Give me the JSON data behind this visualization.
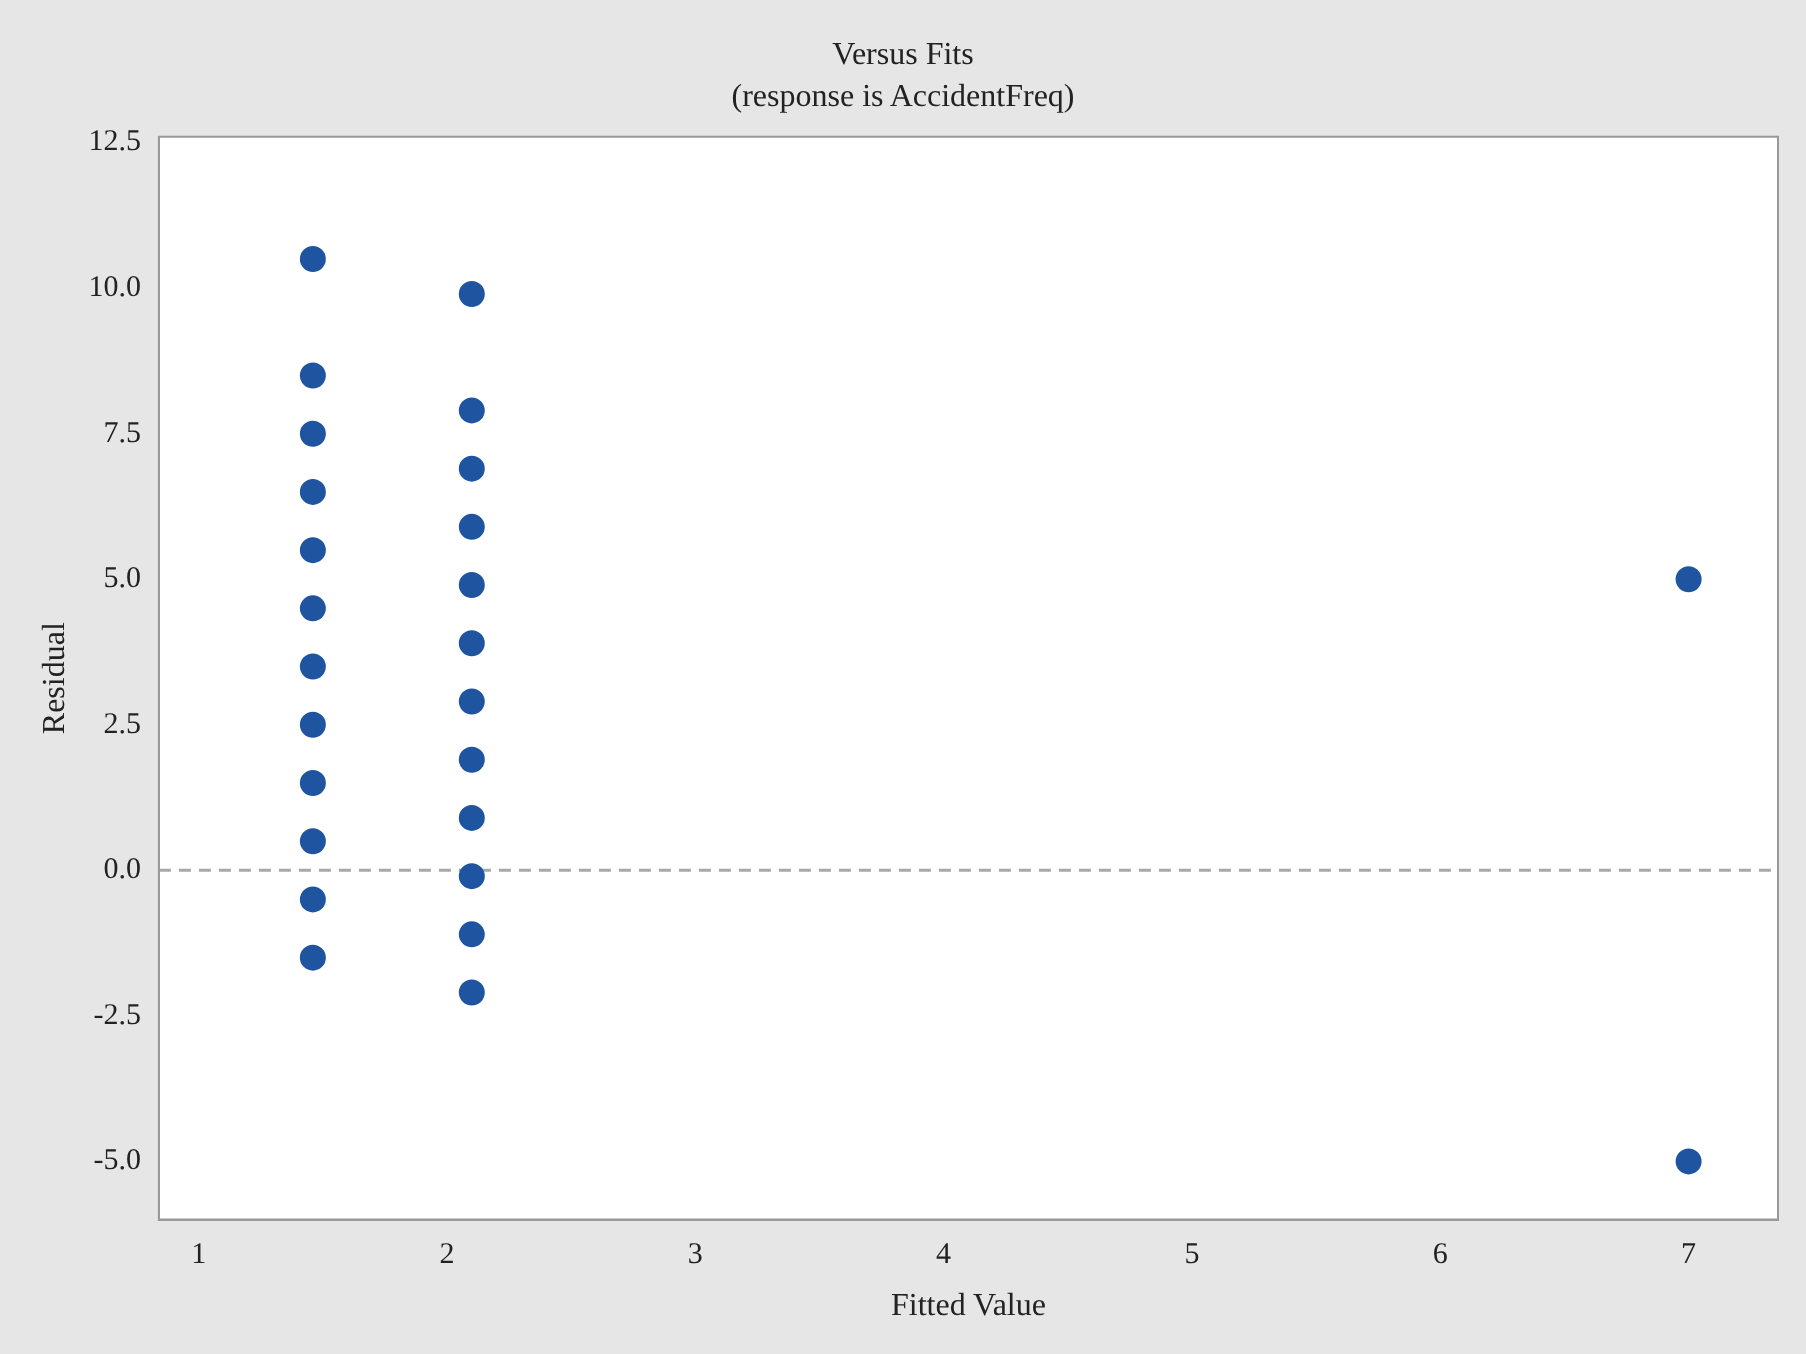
{
  "chart_data": {
    "type": "scatter",
    "title": "Versus Fits",
    "subtitle": "(response is AccidentFreq)",
    "xlabel": "Fitted Value",
    "ylabel": "Residual",
    "series": [
      {
        "color": "#1f55a0",
        "x": [
          1.46,
          1.46,
          1.46,
          1.46,
          1.46,
          1.46,
          1.46,
          1.46,
          1.46,
          1.46,
          1.46,
          1.46,
          2.1,
          2.1,
          2.1,
          2.1,
          2.1,
          2.1,
          2.1,
          2.1,
          2.1,
          2.1,
          2.1,
          2.1,
          7,
          7
        ],
        "values": [
          10.5,
          8.5,
          7.5,
          6.5,
          5.5,
          4.5,
          3.5,
          2.5,
          1.5,
          0.5,
          -0.5,
          -1.5,
          9.9,
          7.9,
          6.9,
          5.9,
          4.9,
          3.9,
          2.9,
          1.9,
          0.9,
          -0.1,
          -1.1,
          -2.1,
          5,
          -5
        ]
      }
    ],
    "xlim": [
      0.84,
      7.36
    ],
    "xticks": [
      1,
      2,
      3,
      4,
      5,
      6,
      7
    ],
    "ylim": [
      -6,
      12.6
    ],
    "yticks": [
      {
        "value": -5,
        "label": "-5.0"
      },
      {
        "value": -2.5,
        "label": "-2.5"
      },
      {
        "value": 0,
        "label": "0.0"
      },
      {
        "value": 2.5,
        "label": "2.5"
      },
      {
        "value": 5,
        "label": "5.0"
      },
      {
        "value": 7.5,
        "label": "7.5"
      },
      {
        "value": 10,
        "label": "10.0"
      },
      {
        "value": 12.5,
        "label": "12.5"
      }
    ],
    "ref_lines": [
      {
        "axis": "y",
        "value": 0,
        "color": "#a8a8a8",
        "line_style": "dashed"
      }
    ],
    "grid": false,
    "legend": false,
    "marker": "circle"
  }
}
